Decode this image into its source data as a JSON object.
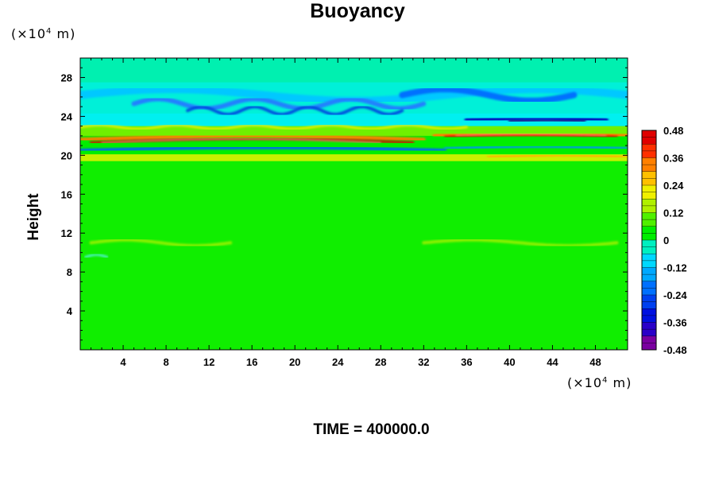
{
  "chart_data": {
    "type": "heatmap",
    "title": "Buoyancy",
    "ylabel": "Height",
    "xunit": {
      "prefix": "(×10",
      "exp": "4",
      "suffix": " m)"
    },
    "yunit": {
      "prefix": "(×10",
      "exp": "4",
      "suffix": " m)"
    },
    "xlim": [
      0,
      51
    ],
    "ylim": [
      0,
      30
    ],
    "xticks": [
      4,
      8,
      12,
      16,
      20,
      24,
      28,
      32,
      36,
      40,
      44,
      48
    ],
    "yticks": [
      4,
      8,
      12,
      16,
      20,
      24,
      28
    ],
    "colorbar": {
      "ticks": [
        0.48,
        0.36,
        0.24,
        0.12,
        0,
        -0.12,
        -0.24,
        -0.36,
        -0.48
      ],
      "range": [
        -0.48,
        0.48
      ]
    },
    "bands": [
      {
        "y": 27.0,
        "value": -0.08
      },
      {
        "y": 25.0,
        "value": -0.18
      },
      {
        "y": 23.3,
        "value": -0.22
      },
      {
        "y": 21.2,
        "value": 0.42
      },
      {
        "y": 20.5,
        "value": -0.24
      },
      {
        "y": 19.6,
        "value": 0.2
      },
      {
        "y": 11.0,
        "value": 0.1
      },
      {
        "y": 5.0,
        "value": 0.0
      }
    ]
  },
  "footer": "TIME = 400000.0"
}
